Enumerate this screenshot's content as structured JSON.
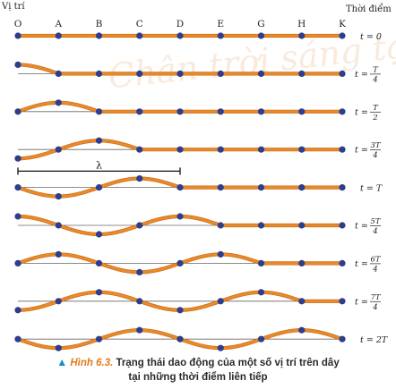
{
  "header": {
    "position_label": "Vị trí",
    "time_label": "Thời điểm"
  },
  "positions": [
    "O",
    "A",
    "B",
    "C",
    "D",
    "E",
    "G",
    "H",
    "K"
  ],
  "rows": [
    {
      "time_label": "t=0",
      "time_fraction": 0,
      "t_num": "",
      "t_den": "",
      "t_plain": "t = 0"
    },
    {
      "time_label": "t=T/4",
      "time_fraction": 0.25,
      "t_num": "T",
      "t_den": "4",
      "t_plain": ""
    },
    {
      "time_label": "t=T/2",
      "time_fraction": 0.5,
      "t_num": "T",
      "t_den": "2",
      "t_plain": ""
    },
    {
      "time_label": "t=3T/4",
      "time_fraction": 0.75,
      "t_num": "3T",
      "t_den": "4",
      "t_plain": ""
    },
    {
      "time_label": "t=T",
      "time_fraction": 1.0,
      "t_num": "",
      "t_den": "",
      "t_plain": "t = T"
    },
    {
      "time_label": "t=5T/4",
      "time_fraction": 1.25,
      "t_num": "5T",
      "t_den": "4",
      "t_plain": ""
    },
    {
      "time_label": "t=6T/4",
      "time_fraction": 1.5,
      "t_num": "6T",
      "t_den": "4",
      "t_plain": ""
    },
    {
      "time_label": "t=7T/4",
      "time_fraction": 1.75,
      "t_num": "7T",
      "t_den": "4",
      "t_plain": ""
    },
    {
      "time_label": "t=2T",
      "time_fraction": 2.0,
      "t_num": "",
      "t_den": "",
      "t_plain": "t = 2T"
    }
  ],
  "wavelength_label": "λ",
  "watermark": "Chân trời sáng tạo",
  "caption": {
    "figure": "Hình 6.3.",
    "line1": "Trạng thái dao động của một số vị trí trên dây",
    "line2": "tại những thời điểm liên tiếp"
  },
  "colors": {
    "string": "#e8892a",
    "string_dark": "#c86a14",
    "point": "#2c3e8c",
    "axis": "#666666",
    "watermark": "#f3d9c0",
    "caption_figure": "#e07a1a",
    "caption_marker": "#1a8fc2"
  }
}
